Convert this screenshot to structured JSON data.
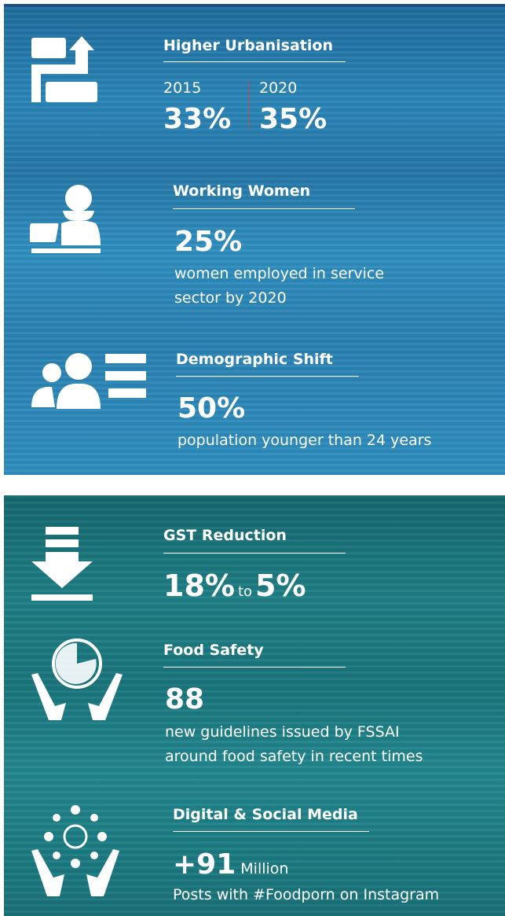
{
  "panels": [
    {
      "items": [
        {
          "title": "Higher Urbanisation",
          "columns": [
            {
              "year": "2015",
              "value": "33%"
            },
            {
              "year": "2020",
              "value": "35%"
            }
          ]
        },
        {
          "title": "Working Women",
          "value": "25%",
          "description": [
            "women employed in service",
            "sector by 2020"
          ]
        },
        {
          "title": "Demographic Shift",
          "value": "50%",
          "description": [
            "population younger than 24 years"
          ]
        }
      ]
    },
    {
      "items": [
        {
          "title": "GST Reduction",
          "from": "18%",
          "connector": "to",
          "to": "5%"
        },
        {
          "title": "Food Safety",
          "value": "88",
          "description": [
            "new guidelines issued by FSSAI",
            "around food safety in recent times"
          ]
        },
        {
          "title": "Digital & Social Media",
          "value": "+91",
          "unit": "Million",
          "description": [
            "Posts with #Foodporn on Instagram"
          ]
        }
      ]
    }
  ]
}
